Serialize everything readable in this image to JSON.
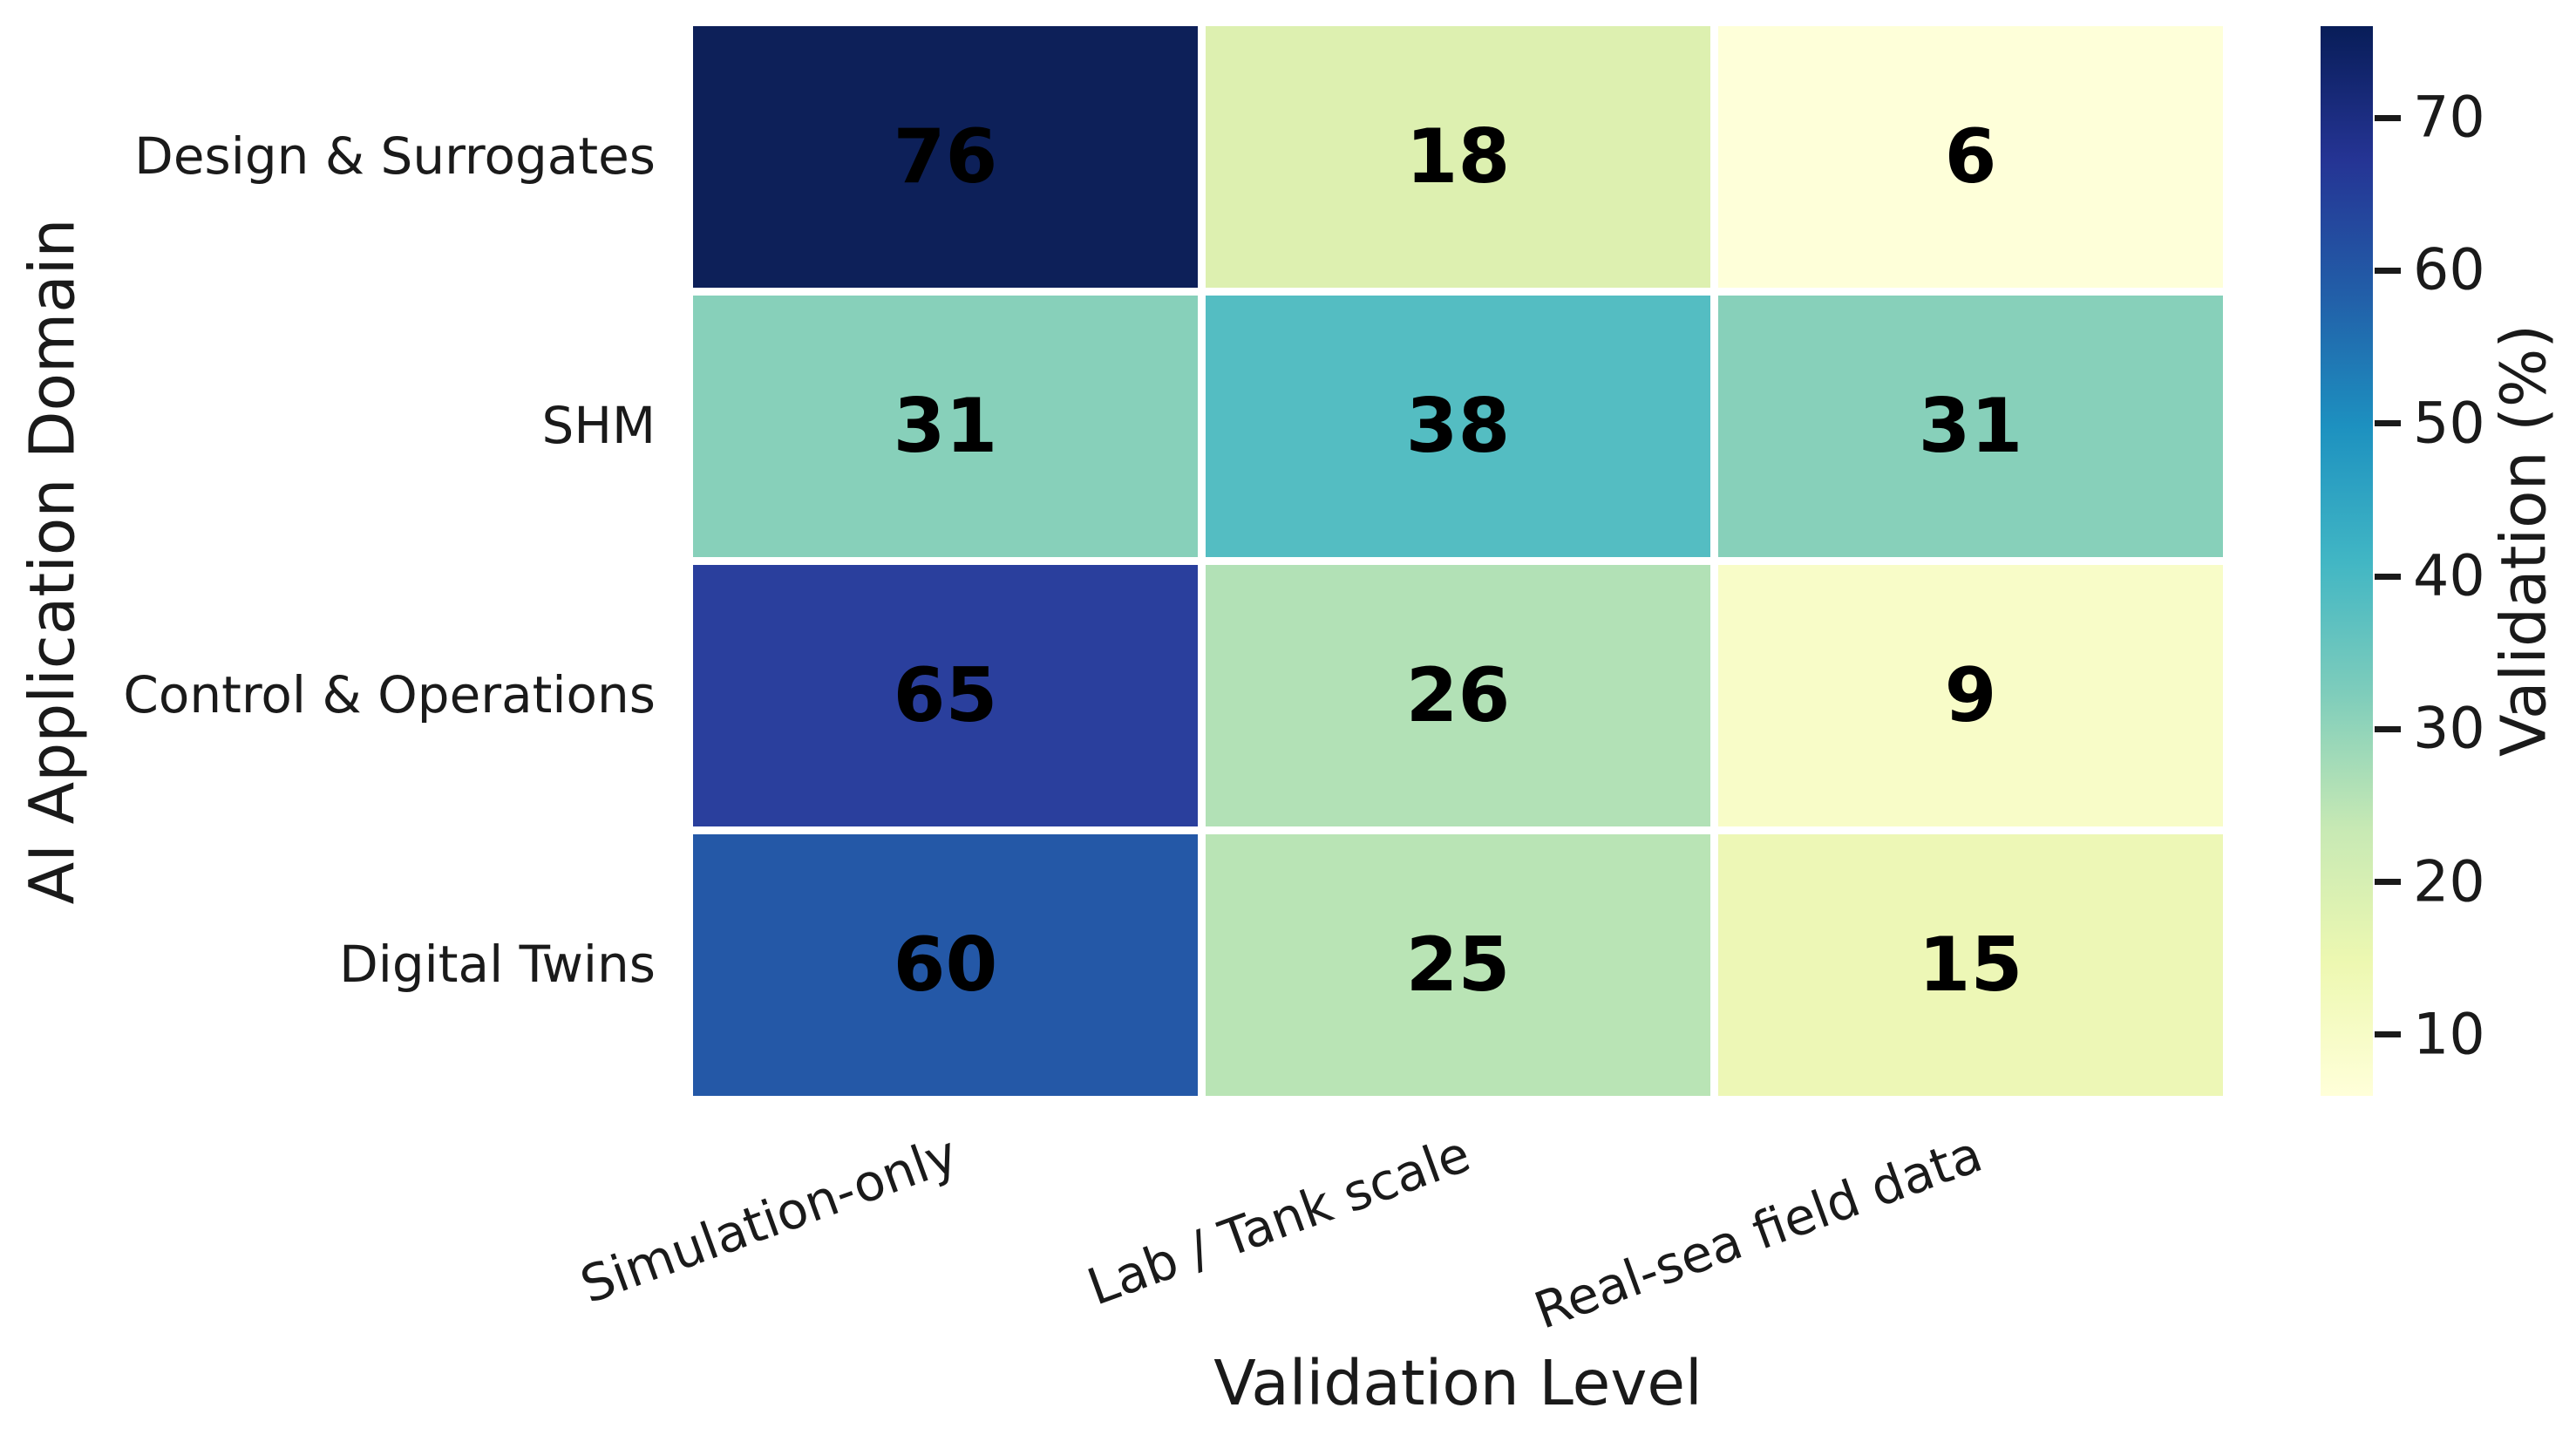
{
  "chart_data": {
    "type": "heatmap",
    "xlabel": "Validation Level",
    "ylabel": "AI Application Domain",
    "columns": [
      "Simulation-only",
      "Lab / Tank scale",
      "Real-sea field data"
    ],
    "rows": [
      "Design & Surrogates",
      "SHM",
      "Control & Operations",
      "Digital Twins"
    ],
    "values": [
      [
        76,
        18,
        6
      ],
      [
        31,
        38,
        31
      ],
      [
        65,
        26,
        9
      ],
      [
        60,
        25,
        15
      ]
    ],
    "cell_colors": [
      [
        "#0d2059",
        "#ddf0b0",
        "#feffd9"
      ],
      [
        "#87d0ba",
        "#54bdc2",
        "#87d0ba"
      ],
      [
        "#2a3f9d",
        "#b2e1b6",
        "#f8fcc8"
      ],
      [
        "#2458a7",
        "#b9e4b5",
        "#edf7b6"
      ]
    ],
    "annotation_color": "#000000",
    "x_tick_rotation_deg": 20,
    "grid": false,
    "gridline_color": "#ffffff",
    "colorbar": {
      "label": "Validation (%)",
      "vmin": 6,
      "vmax": 76,
      "ticks": [
        10,
        20,
        30,
        40,
        50,
        60,
        70
      ],
      "colormap_name": "YlGnBu",
      "gradient_stops_bottom_to_top": [
        "#ffffd9",
        "#edf8b1",
        "#c7e9b4",
        "#7fcdbb",
        "#41b6c4",
        "#1d91c0",
        "#225ea8",
        "#253494",
        "#081d58"
      ]
    }
  }
}
